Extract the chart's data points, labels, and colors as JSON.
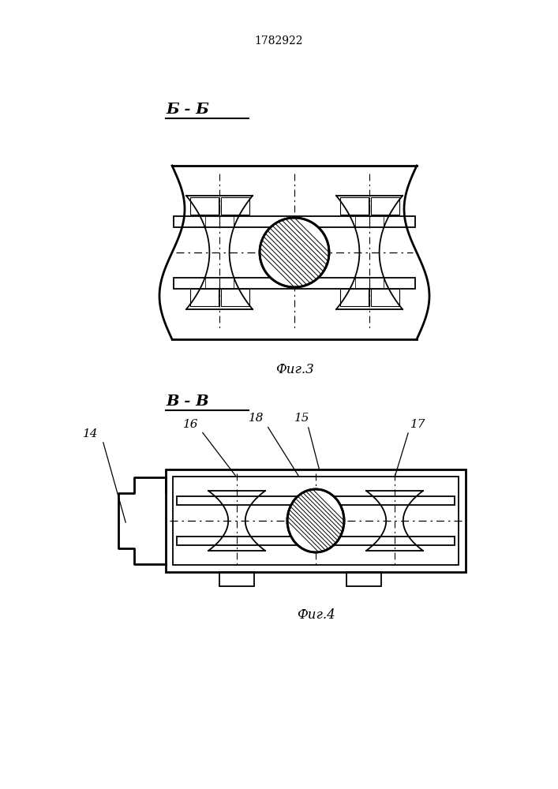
{
  "patent_number": "1782922",
  "fig3_label": "Б - Б",
  "fig3_caption": "Фиг.3",
  "fig4_label": "В - В",
  "fig4_caption": "Фиг.4",
  "line_color": "#000000",
  "bg_color": "#ffffff"
}
